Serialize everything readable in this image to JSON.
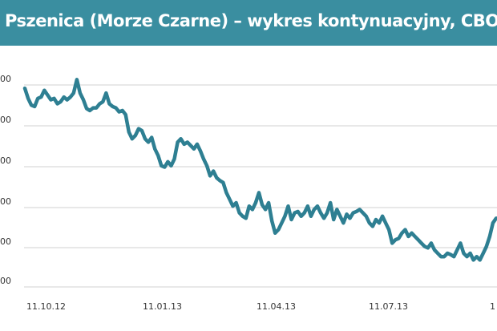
{
  "title": "Pszenica (Morze Czarne) – wykres kontynuacyjny, CBOT",
  "colors": {
    "header": "#3a8ea0",
    "line": "#2e7f92",
    "grid": "#d2d2d2",
    "title_text": "#ffffff"
  },
  "chart_data": {
    "type": "line",
    "title": "Pszenica (Morze Czarne) – wykres kontynuacyjny, CBOT",
    "xlabel": "",
    "ylabel": "",
    "x_tick_labels": [
      "11.10.12",
      "11.01.13",
      "11.04.13",
      "11.07.13",
      "1"
    ],
    "y_tick_labels": [
      "00",
      "00",
      "00",
      "00",
      "00",
      "00"
    ],
    "grid": true,
    "series": [
      {
        "values": [
          [
            0,
            4.95
          ],
          [
            1,
            4.8
          ],
          [
            2,
            4.7
          ],
          [
            3,
            4.68
          ],
          [
            4,
            4.8
          ],
          [
            5,
            4.82
          ],
          [
            6,
            4.92
          ],
          [
            7,
            4.85
          ],
          [
            8,
            4.78
          ],
          [
            9,
            4.8
          ],
          [
            10,
            4.72
          ],
          [
            11,
            4.75
          ],
          [
            12,
            4.82
          ],
          [
            13,
            4.78
          ],
          [
            14,
            4.82
          ],
          [
            15,
            4.88
          ],
          [
            16,
            5.08
          ],
          [
            17,
            4.88
          ],
          [
            18,
            4.78
          ],
          [
            19,
            4.65
          ],
          [
            20,
            4.62
          ],
          [
            21,
            4.66
          ],
          [
            22,
            4.66
          ],
          [
            23,
            4.72
          ],
          [
            24,
            4.75
          ],
          [
            25,
            4.88
          ],
          [
            26,
            4.72
          ],
          [
            27,
            4.68
          ],
          [
            28,
            4.66
          ],
          [
            29,
            4.6
          ],
          [
            30,
            4.62
          ],
          [
            31,
            4.56
          ],
          [
            32,
            4.3
          ],
          [
            33,
            4.2
          ],
          [
            34,
            4.25
          ],
          [
            35,
            4.35
          ],
          [
            36,
            4.32
          ],
          [
            37,
            4.2
          ],
          [
            38,
            4.15
          ],
          [
            39,
            4.22
          ],
          [
            40,
            4.05
          ],
          [
            41,
            3.95
          ],
          [
            42,
            3.8
          ],
          [
            43,
            3.78
          ],
          [
            44,
            3.86
          ],
          [
            45,
            3.8
          ],
          [
            46,
            3.9
          ],
          [
            47,
            4.15
          ],
          [
            48,
            4.2
          ],
          [
            49,
            4.12
          ],
          [
            50,
            4.15
          ],
          [
            51,
            4.1
          ],
          [
            52,
            4.05
          ],
          [
            53,
            4.12
          ],
          [
            54,
            4.02
          ],
          [
            55,
            3.9
          ],
          [
            56,
            3.8
          ],
          [
            57,
            3.65
          ],
          [
            58,
            3.72
          ],
          [
            59,
            3.62
          ],
          [
            60,
            3.58
          ],
          [
            61,
            3.55
          ],
          [
            62,
            3.4
          ],
          [
            63,
            3.3
          ],
          [
            64,
            3.2
          ],
          [
            65,
            3.25
          ],
          [
            66,
            3.1
          ],
          [
            67,
            3.05
          ],
          [
            68,
            3.02
          ],
          [
            69,
            3.2
          ],
          [
            70,
            3.15
          ],
          [
            71,
            3.25
          ],
          [
            72,
            3.4
          ],
          [
            73,
            3.22
          ],
          [
            74,
            3.15
          ],
          [
            75,
            3.25
          ],
          [
            76,
            2.98
          ],
          [
            77,
            2.8
          ],
          [
            78,
            2.85
          ],
          [
            79,
            2.95
          ],
          [
            80,
            3.05
          ],
          [
            81,
            3.2
          ],
          [
            82,
            3.0
          ],
          [
            83,
            3.1
          ],
          [
            84,
            3.12
          ],
          [
            85,
            3.05
          ],
          [
            86,
            3.1
          ],
          [
            87,
            3.2
          ],
          [
            88,
            3.05
          ],
          [
            89,
            3.15
          ],
          [
            90,
            3.2
          ],
          [
            91,
            3.1
          ],
          [
            92,
            3.02
          ],
          [
            93,
            3.1
          ],
          [
            94,
            3.25
          ],
          [
            95,
            3.0
          ],
          [
            96,
            3.15
          ],
          [
            97,
            3.05
          ],
          [
            98,
            2.95
          ],
          [
            99,
            3.08
          ],
          [
            100,
            3.02
          ],
          [
            101,
            3.1
          ],
          [
            102,
            3.12
          ],
          [
            103,
            3.15
          ],
          [
            104,
            3.1
          ],
          [
            105,
            3.05
          ],
          [
            106,
            2.95
          ],
          [
            107,
            2.9
          ],
          [
            108,
            3.0
          ],
          [
            109,
            2.95
          ],
          [
            110,
            3.05
          ],
          [
            111,
            2.95
          ],
          [
            112,
            2.85
          ],
          [
            113,
            2.65
          ],
          [
            114,
            2.7
          ],
          [
            115,
            2.72
          ],
          [
            116,
            2.8
          ],
          [
            117,
            2.85
          ],
          [
            118,
            2.75
          ],
          [
            119,
            2.8
          ],
          [
            120,
            2.75
          ],
          [
            121,
            2.7
          ],
          [
            122,
            2.65
          ],
          [
            123,
            2.6
          ],
          [
            124,
            2.58
          ],
          [
            125,
            2.65
          ],
          [
            126,
            2.55
          ],
          [
            127,
            2.5
          ],
          [
            128,
            2.45
          ],
          [
            129,
            2.45
          ],
          [
            130,
            2.5
          ],
          [
            131,
            2.48
          ],
          [
            132,
            2.45
          ],
          [
            133,
            2.55
          ],
          [
            134,
            2.65
          ],
          [
            135,
            2.5
          ],
          [
            136,
            2.45
          ],
          [
            137,
            2.5
          ],
          [
            138,
            2.4
          ],
          [
            139,
            2.45
          ],
          [
            140,
            2.4
          ],
          [
            141,
            2.5
          ],
          [
            142,
            2.6
          ],
          [
            143,
            2.75
          ],
          [
            144,
            2.95
          ],
          [
            145,
            3.02
          ]
        ]
      }
    ]
  }
}
